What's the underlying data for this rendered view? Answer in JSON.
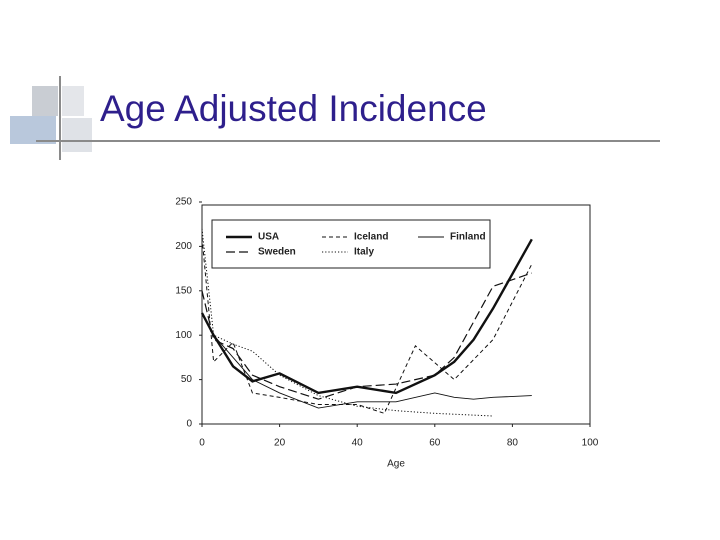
{
  "slide_title": "Age Adjusted Incidence",
  "chart_data": {
    "type": "line",
    "x_label": "Age",
    "xlim": [
      0,
      100
    ],
    "xticks": [
      0,
      20,
      40,
      60,
      80,
      100
    ],
    "ylim": [
      0,
      250
    ],
    "yticks": [
      0,
      50,
      100,
      150,
      200,
      250
    ],
    "legend": "upper left",
    "series": [
      {
        "name": "USA",
        "color": "#111111",
        "line_style": "solid",
        "line_width": 2.4,
        "x": [
          0,
          3,
          8,
          13,
          20,
          30,
          40,
          50,
          60,
          65,
          70,
          75,
          85
        ],
        "values": [
          125,
          100,
          65,
          48,
          57,
          35,
          42,
          35,
          55,
          70,
          95,
          130,
          208
        ]
      },
      {
        "name": "Sweden",
        "color": "#111111",
        "line_style": "dashed",
        "line_width": 1.2,
        "x": [
          0,
          3,
          8,
          13,
          20,
          30,
          40,
          50,
          60,
          65,
          75,
          85
        ],
        "values": [
          150,
          95,
          85,
          55,
          42,
          28,
          42,
          45,
          55,
          75,
          155,
          170
        ]
      },
      {
        "name": "Iceland",
        "color": "#111111",
        "line_style": "short-dashed",
        "line_width": 1,
        "x": [
          0,
          3,
          8,
          13,
          20,
          30,
          40,
          47,
          55,
          65,
          75,
          85
        ],
        "values": [
          210,
          70,
          92,
          35,
          30,
          22,
          22,
          12,
          88,
          50,
          95,
          180
        ]
      },
      {
        "name": "Italy",
        "color": "#111111",
        "line_style": "dotted",
        "line_width": 1,
        "x": [
          0,
          3,
          8,
          13,
          20,
          30,
          40,
          50,
          60,
          70,
          75
        ],
        "values": [
          220,
          100,
          90,
          82,
          55,
          32,
          20,
          15,
          12,
          10,
          9
        ]
      },
      {
        "name": "Finland",
        "color": "#111111",
        "line_style": "solid",
        "line_width": 0.9,
        "x": [
          0,
          3,
          8,
          13,
          20,
          30,
          40,
          50,
          60,
          65,
          70,
          75,
          85
        ],
        "values": [
          125,
          100,
          75,
          50,
          35,
          18,
          25,
          25,
          35,
          30,
          28,
          30,
          32
        ]
      }
    ]
  }
}
